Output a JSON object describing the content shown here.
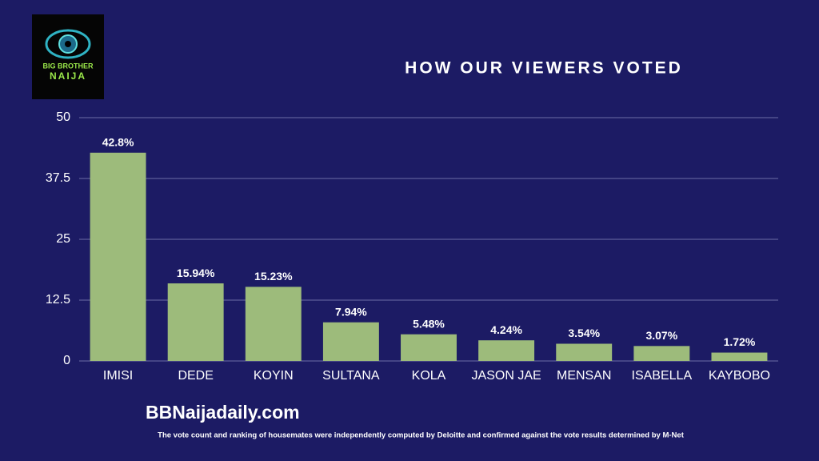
{
  "chart_data": {
    "type": "bar",
    "logo_lines": [
      "BIG BROTHER",
      "NAIJA"
    ],
    "title": "HOW OUR VIEWERS VOTED",
    "categories": [
      "IMISI",
      "DEDE",
      "KOYIN",
      "SULTANA",
      "KOLA",
      "JASON JAE",
      "MENSAN",
      "ISABELLA",
      "KAYBOBO"
    ],
    "values": [
      42.8,
      15.94,
      15.23,
      7.94,
      5.48,
      4.24,
      3.54,
      3.07,
      1.72
    ],
    "value_labels": [
      "42.8%",
      "15.94%",
      "15.23%",
      "7.94%",
      "5.48%",
      "4.24%",
      "3.54%",
      "3.07%",
      "1.72%"
    ],
    "color": "#9dbb7b",
    "ylim": [
      0,
      50
    ],
    "yticks": [
      0,
      12.5,
      25,
      37.5,
      50
    ],
    "grid": true,
    "source": "BBNaijadaily.com",
    "footnote": "The vote count and ranking of housemates were independently computed by Deloitte and confirmed against the vote results determined by M-Net"
  }
}
